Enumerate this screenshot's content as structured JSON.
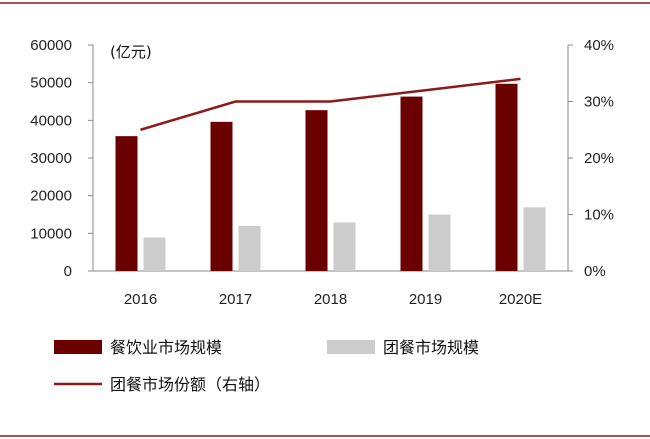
{
  "chart_data": {
    "type": "bar",
    "unit_label": "(亿元)",
    "categories": [
      "2016",
      "2017",
      "2018",
      "2019",
      "2020E"
    ],
    "series": [
      {
        "name": "餐饮业市场规模",
        "type": "bar",
        "axis": "left",
        "color": "#6b0000",
        "values": [
          35800,
          39600,
          42700,
          46300,
          49700
        ]
      },
      {
        "name": "团餐市场规模",
        "type": "bar",
        "axis": "left",
        "color": "#cccccc",
        "values": [
          8900,
          12000,
          12900,
          15000,
          16900
        ]
      },
      {
        "name": "团餐市场份额（右轴）",
        "type": "line",
        "axis": "right",
        "color": "#8b1a1a",
        "values": [
          0.25,
          0.3,
          0.3,
          0.32,
          0.34
        ]
      }
    ],
    "y_left": {
      "min": 0,
      "max": 60000,
      "ticks": [
        "0",
        "10000",
        "20000",
        "30000",
        "40000",
        "50000",
        "60000"
      ]
    },
    "y_right": {
      "min": 0,
      "max": 0.4,
      "ticks": [
        "0%",
        "10%",
        "20%",
        "30%",
        "40%"
      ]
    },
    "legend_position": "bottom",
    "frame_color": "#8b1a1a"
  }
}
